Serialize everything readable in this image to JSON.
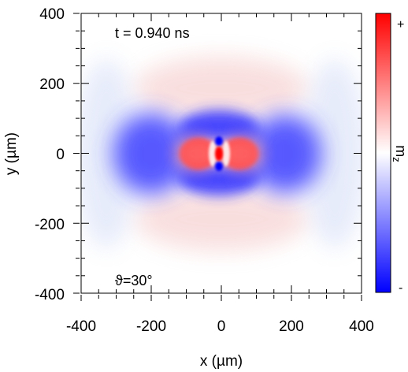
{
  "chart_data": {
    "type": "heatmap",
    "x_label": "x (µm)",
    "y_label": "y (µm)",
    "xlim": [
      -400,
      400
    ],
    "ylim": [
      -400,
      400
    ],
    "x_ticks": [
      "-400",
      "-200",
      "0",
      "200",
      "400"
    ],
    "y_ticks": [
      "400",
      "200",
      "0",
      "-200",
      "-400"
    ],
    "x_tick_values": [
      -400,
      -200,
      0,
      200,
      400
    ],
    "y_tick_values": [
      400,
      200,
      0,
      -200,
      -400
    ],
    "annotations": {
      "time": "t = 0.940 ns",
      "angle": "ϑ=30°"
    },
    "colorbar": {
      "label": "mz",
      "label_base": "m",
      "label_sub": "z",
      "max_label": "+",
      "min_label": "-",
      "colors": {
        "max": "#ff0000",
        "mid": "#ffffff",
        "min": "#0000ff"
      }
    },
    "features": [
      {
        "name": "central-red-core",
        "sign": "+",
        "x": 0,
        "y": 0
      },
      {
        "name": "blue-dot-upper",
        "sign": "-",
        "x": 0,
        "y": 40
      },
      {
        "name": "blue-dot-lower",
        "sign": "-",
        "x": 0,
        "y": -40
      },
      {
        "name": "red-lobe-left",
        "sign": "+",
        "x": -90,
        "y": 0
      },
      {
        "name": "red-lobe-right",
        "sign": "+",
        "x": 80,
        "y": 0
      },
      {
        "name": "blue-ring-upper",
        "sign": "-",
        "x": 0,
        "y": 90
      },
      {
        "name": "blue-ring-lower",
        "sign": "-",
        "x": 0,
        "y": -90
      },
      {
        "name": "blue-lobe-left",
        "sign": "-",
        "x": -200,
        "y": 0
      },
      {
        "name": "blue-lobe-right",
        "sign": "-",
        "x": 190,
        "y": 0
      },
      {
        "name": "faint-red-upper",
        "sign": "+",
        "x": 0,
        "y": 200
      },
      {
        "name": "faint-red-lower",
        "sign": "+",
        "x": 0,
        "y": -200
      }
    ]
  }
}
